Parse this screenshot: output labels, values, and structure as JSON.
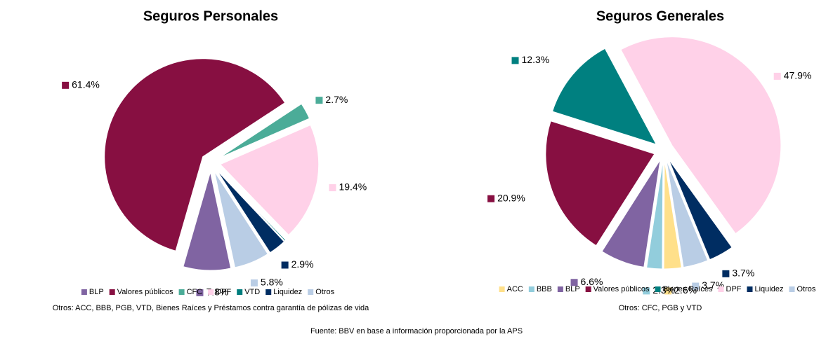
{
  "chart_data": [
    {
      "type": "pie",
      "title": "Seguros Personales",
      "categories": [
        "BLP",
        "Valores públicos",
        "CFC",
        "DPF",
        "VTD",
        "Liquidez",
        "Otros"
      ],
      "values": [
        7.8,
        61.4,
        2.7,
        19.4,
        0.2,
        2.9,
        5.8
      ],
      "value_labels": [
        "7.8%",
        "61.4%",
        "2.7%",
        "19.4%",
        null,
        "2.9%",
        "5.8%"
      ],
      "colors": [
        "#8064a2",
        "#870f41",
        "#4bac98",
        "#ffd1e8",
        "#007d7d",
        "#002d62",
        "#b9cde5"
      ],
      "legend": "bottom",
      "note": "Otros: ACC, BBB, PGB, VTD, Bienes Raíces y Préstamos contra garantía de pólizas de vida"
    },
    {
      "type": "pie",
      "title": "Seguros Generales",
      "categories": [
        "ACC",
        "BBB",
        "BLP",
        "Valores públicos",
        "Bienes Raíces",
        "DPF",
        "Liquidez",
        "Otros"
      ],
      "values": [
        2.6,
        2.3,
        6.6,
        20.9,
        12.3,
        47.9,
        3.7,
        3.7
      ],
      "value_labels": [
        "2.6%",
        "2.3%",
        "6.6%",
        "20.9%",
        "12.3%",
        "47.9%",
        "3.7%",
        "3.7%"
      ],
      "colors": [
        "#ffe08a",
        "#92cddc",
        "#8064a2",
        "#870f41",
        "#008080",
        "#ffd1e8",
        "#002d62",
        "#b9cde5"
      ],
      "legend": "bottom",
      "note": "Otros: CFC, PGB y VTD"
    }
  ],
  "source": "Fuente: BBV en base a información proporcionada por la APS"
}
